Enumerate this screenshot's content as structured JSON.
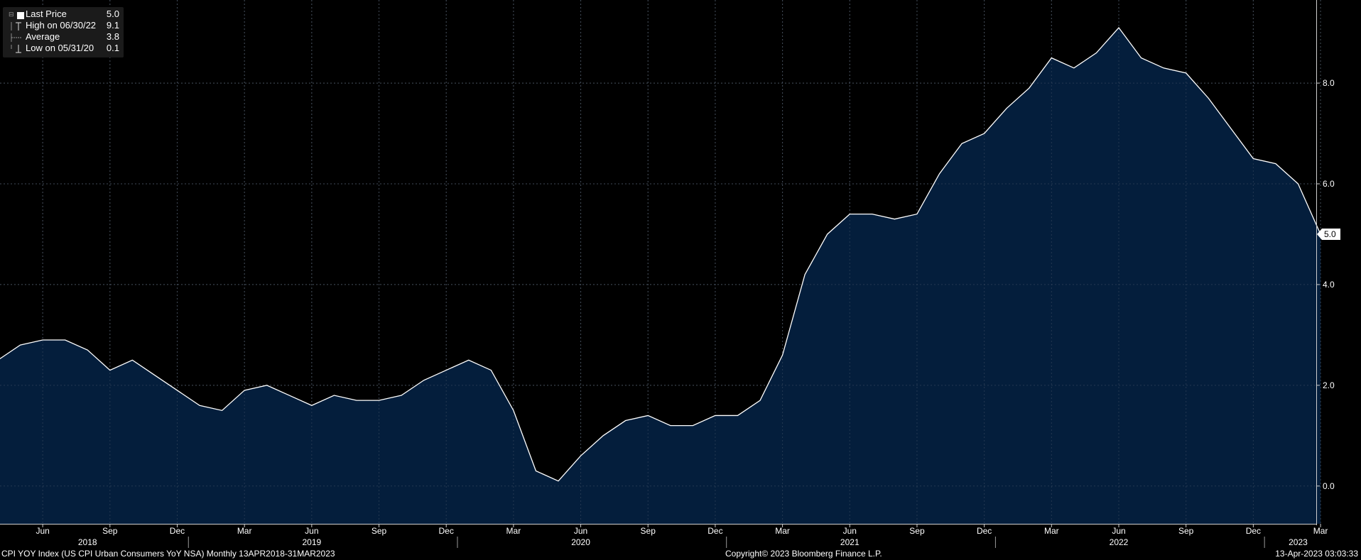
{
  "legend": {
    "items": [
      {
        "label": "Last Price",
        "value": "5.0",
        "marker": "square-swatch-icon"
      },
      {
        "label": "High on 06/30/22",
        "value": "9.1",
        "marker": "high-marker-icon"
      },
      {
        "label": "Average",
        "value": "3.8",
        "marker": "average-marker-icon"
      },
      {
        "label": "Low on 05/31/20",
        "value": "0.1",
        "marker": "low-marker-icon"
      }
    ]
  },
  "footer": {
    "left": "CPI YOY Index (US CPI Urban Consumers YoY NSA)  Monthly 13APR2018-31MAR2023",
    "center": "Copyright© 2023 Bloomberg Finance L.P.",
    "right": "13-Apr-2023 03:03:33"
  },
  "colors": {
    "background": "#000000",
    "area_fill": "#041e3c",
    "line": "#ffffff",
    "grid": "#4a4a4a",
    "text": "#ffffff"
  },
  "chart_data": {
    "type": "area",
    "x": [
      "Apr-18",
      "May-18",
      "Jun-18",
      "Jul-18",
      "Aug-18",
      "Sep-18",
      "Oct-18",
      "Nov-18",
      "Dec-18",
      "Jan-19",
      "Feb-19",
      "Mar-19",
      "Apr-19",
      "May-19",
      "Jun-19",
      "Jul-19",
      "Aug-19",
      "Sep-19",
      "Oct-19",
      "Nov-19",
      "Dec-19",
      "Jan-20",
      "Feb-20",
      "Mar-20",
      "Apr-20",
      "May-20",
      "Jun-20",
      "Jul-20",
      "Aug-20",
      "Sep-20",
      "Oct-20",
      "Nov-20",
      "Dec-20",
      "Jan-21",
      "Feb-21",
      "Mar-21",
      "Apr-21",
      "May-21",
      "Jun-21",
      "Jul-21",
      "Aug-21",
      "Sep-21",
      "Oct-21",
      "Nov-21",
      "Dec-21",
      "Jan-22",
      "Feb-22",
      "Mar-22",
      "Apr-22",
      "May-22",
      "Jun-22",
      "Jul-22",
      "Aug-22",
      "Sep-22",
      "Oct-22",
      "Nov-22",
      "Dec-22",
      "Jan-23",
      "Feb-23",
      "Mar-23"
    ],
    "values": [
      2.5,
      2.8,
      2.9,
      2.9,
      2.7,
      2.3,
      2.5,
      2.2,
      1.9,
      1.6,
      1.5,
      1.9,
      2.0,
      1.8,
      1.6,
      1.8,
      1.7,
      1.7,
      1.8,
      2.1,
      2.3,
      2.5,
      2.3,
      1.5,
      0.3,
      0.1,
      0.6,
      1.0,
      1.3,
      1.4,
      1.2,
      1.2,
      1.4,
      1.4,
      1.7,
      2.6,
      4.2,
      5.0,
      5.4,
      5.4,
      5.3,
      5.4,
      6.2,
      6.8,
      7.0,
      7.5,
      7.9,
      8.5,
      8.3,
      8.6,
      9.1,
      8.5,
      8.3,
      8.2,
      7.7,
      7.1,
      6.5,
      6.4,
      6.0,
      5.0
    ],
    "ylim": [
      -0.75,
      9.65
    ],
    "y_ticks": [
      "0.0",
      "2.0",
      "4.0",
      "6.0",
      "8.0"
    ],
    "y_tick_values": [
      0,
      2,
      4,
      6,
      8
    ],
    "x_month_ticks": [
      {
        "label": "Jun",
        "x": "Jun-18"
      },
      {
        "label": "Sep",
        "x": "Sep-18"
      },
      {
        "label": "Dec",
        "x": "Dec-18"
      },
      {
        "label": "Mar",
        "x": "Mar-19"
      },
      {
        "label": "Jun",
        "x": "Jun-19"
      },
      {
        "label": "Sep",
        "x": "Sep-19"
      },
      {
        "label": "Dec",
        "x": "Dec-19"
      },
      {
        "label": "Mar",
        "x": "Mar-20"
      },
      {
        "label": "Jun",
        "x": "Jun-20"
      },
      {
        "label": "Sep",
        "x": "Sep-20"
      },
      {
        "label": "Dec",
        "x": "Dec-20"
      },
      {
        "label": "Mar",
        "x": "Mar-21"
      },
      {
        "label": "Jun",
        "x": "Jun-21"
      },
      {
        "label": "Sep",
        "x": "Sep-21"
      },
      {
        "label": "Dec",
        "x": "Dec-21"
      },
      {
        "label": "Mar",
        "x": "Mar-22"
      },
      {
        "label": "Jun",
        "x": "Jun-22"
      },
      {
        "label": "Sep",
        "x": "Sep-22"
      },
      {
        "label": "Dec",
        "x": "Dec-22"
      },
      {
        "label": "Mar",
        "x": "Mar-23"
      }
    ],
    "x_year_labels": [
      {
        "label": "2018",
        "x": "Aug-18"
      },
      {
        "label": "2019",
        "x": "Jun-19"
      },
      {
        "label": "2020",
        "x": "Jun-20"
      },
      {
        "label": "2021",
        "x": "Jun-21"
      },
      {
        "label": "2022",
        "x": "Jun-22"
      },
      {
        "label": "2023",
        "x": "Feb-23"
      }
    ],
    "x_year_separators": [
      "Jan-19",
      "Jan-20",
      "Jan-21",
      "Jan-22",
      "Jan-23"
    ],
    "last_value_label": "5.0",
    "grid": true,
    "legend_position": "top-left",
    "y_axis_side": "right"
  }
}
